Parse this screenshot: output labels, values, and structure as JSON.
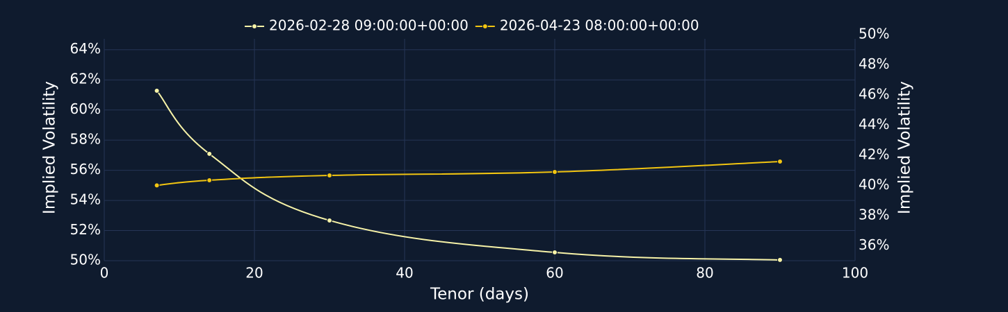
{
  "chart_data": {
    "type": "line",
    "x_label": "Tenor (days)",
    "y_label": "Implied Volatility",
    "y2_label": "Implied Volatility",
    "xlim": [
      0,
      100
    ],
    "xticks": [
      0,
      20,
      40,
      60,
      80,
      100
    ],
    "ylim": [
      50,
      65
    ],
    "yticks": [
      {
        "value": 50,
        "label": "50%"
      },
      {
        "value": 52,
        "label": "52%"
      },
      {
        "value": 54,
        "label": "54%"
      },
      {
        "value": 56,
        "label": "56%"
      },
      {
        "value": 58,
        "label": "58%"
      },
      {
        "value": 60,
        "label": "60%"
      },
      {
        "value": 62,
        "label": "62%"
      },
      {
        "value": 64,
        "label": "64%"
      }
    ],
    "y2lim": [
      35,
      50
    ],
    "y2ticks": [
      {
        "value": 36,
        "label": "36%"
      },
      {
        "value": 38,
        "label": "38%"
      },
      {
        "value": 40,
        "label": "40%"
      },
      {
        "value": 42,
        "label": "42%"
      },
      {
        "value": 44,
        "label": "44%"
      },
      {
        "value": 46,
        "label": "46%"
      },
      {
        "value": 48,
        "label": "48%"
      },
      {
        "value": 50,
        "label": "50%"
      }
    ],
    "grid": true,
    "series": [
      {
        "name": "2026-02-28 09:00:00+00:00",
        "color": "#f7f3a8",
        "x": [
          7,
          14,
          30,
          60,
          90
        ],
        "values": [
          61.28,
          57.09,
          52.67,
          50.55,
          50.05
        ]
      },
      {
        "name": "2026-04-23 08:00:00+00:00",
        "color": "#f2c511",
        "axis": "y2",
        "x": [
          7,
          14,
          30,
          60,
          90
        ],
        "values": [
          40.0,
          40.34,
          40.66,
          40.89,
          41.58
        ]
      }
    ]
  }
}
